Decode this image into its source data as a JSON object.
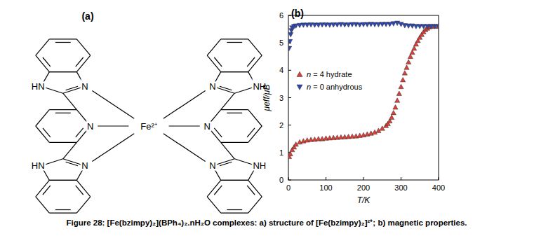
{
  "structure": {
    "panel_label": "(a)",
    "metal": "Fe²⁺",
    "left_labels": [
      "HN",
      "N",
      "N",
      "N",
      "HN"
    ],
    "right_labels": [
      "NH",
      "N",
      "N",
      "N",
      "NH"
    ]
  },
  "caption": "Figure 28: [Fe(bzimpy)₂](BPh₄)₂.nH₂O complexes: a) structure of [Fe(bzimpy)₂]²⁺; b) magnetic properties.",
  "chart_data": {
    "type": "scatter",
    "title": "(b)",
    "x_label": "T/K",
    "y_label": "μeff/μB",
    "xlim": [
      0,
      400
    ],
    "xticks": [
      0,
      100,
      200,
      300,
      400
    ],
    "ylim": [
      0,
      6
    ],
    "yticks": [
      0,
      1,
      2,
      3,
      4,
      5,
      6
    ],
    "grid": false,
    "legend": "left",
    "series": [
      {
        "name": "n = 4 hydrate",
        "color": "#d8403a",
        "marker": "triangle-up",
        "x": [
          2,
          5,
          10,
          15,
          20,
          30,
          40,
          50,
          60,
          70,
          80,
          90,
          100,
          110,
          120,
          130,
          140,
          150,
          160,
          170,
          180,
          190,
          200,
          210,
          220,
          230,
          240,
          250,
          260,
          265,
          270,
          275,
          280,
          285,
          290,
          295,
          300,
          305,
          310,
          315,
          320,
          325,
          330,
          335,
          340,
          345,
          350,
          355,
          360,
          365,
          370,
          375,
          380,
          390,
          400
        ],
        "values": [
          0.85,
          0.95,
          1.1,
          1.2,
          1.3,
          1.38,
          1.42,
          1.45,
          1.47,
          1.48,
          1.5,
          1.5,
          1.52,
          1.53,
          1.54,
          1.55,
          1.56,
          1.57,
          1.58,
          1.59,
          1.6,
          1.62,
          1.64,
          1.67,
          1.7,
          1.74,
          1.8,
          1.88,
          1.98,
          2.05,
          2.15,
          2.28,
          2.45,
          2.65,
          2.9,
          3.15,
          3.4,
          3.65,
          3.9,
          4.1,
          4.3,
          4.5,
          4.65,
          4.8,
          4.95,
          5.08,
          5.2,
          5.3,
          5.4,
          5.48,
          5.53,
          5.58,
          5.6,
          5.6,
          5.6
        ]
      },
      {
        "name": "n = 0 anhydrous",
        "color": "#2f45b0",
        "marker": "triangle-down",
        "x": [
          2,
          4,
          6,
          8,
          10,
          15,
          20,
          30,
          40,
          50,
          60,
          70,
          80,
          90,
          100,
          110,
          120,
          130,
          140,
          150,
          160,
          170,
          180,
          190,
          200,
          210,
          220,
          230,
          240,
          250,
          260,
          270,
          280,
          290,
          300,
          310,
          320,
          330,
          340,
          350,
          360,
          370,
          380,
          390,
          400
        ],
        "values": [
          4.8,
          5.05,
          5.3,
          5.45,
          5.55,
          5.6,
          5.62,
          5.64,
          5.65,
          5.65,
          5.66,
          5.65,
          5.65,
          5.66,
          5.66,
          5.65,
          5.66,
          5.66,
          5.67,
          5.66,
          5.66,
          5.67,
          5.67,
          5.66,
          5.67,
          5.67,
          5.68,
          5.67,
          5.67,
          5.68,
          5.68,
          5.68,
          5.7,
          5.72,
          5.68,
          5.63,
          5.62,
          5.62,
          5.6,
          5.6,
          5.6,
          5.6,
          5.6,
          5.6,
          5.6
        ]
      }
    ]
  }
}
